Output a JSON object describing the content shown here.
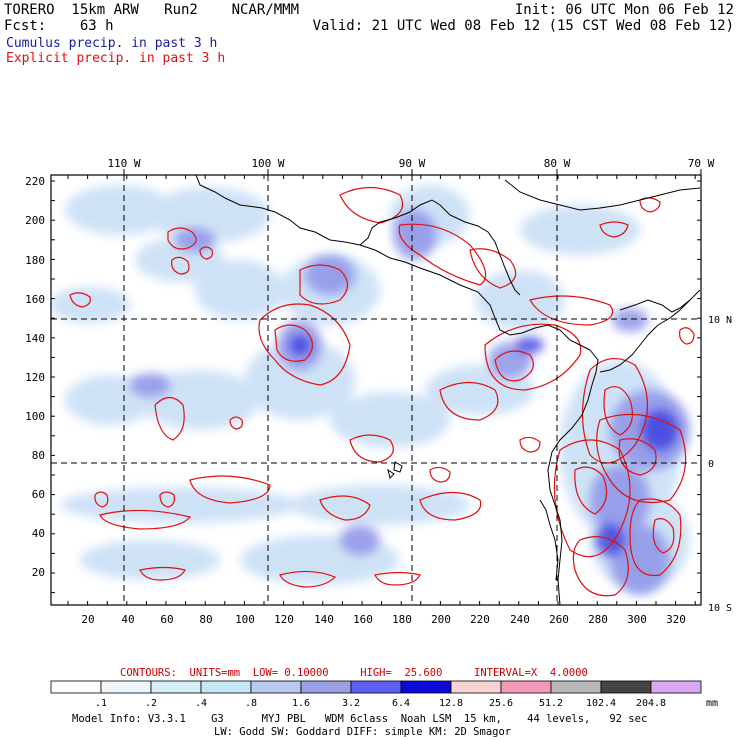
{
  "header": {
    "line1_left": "TORERO  15km ARW   Run2    NCAR/MMM",
    "line1_right": "Init: 06 UTC Mon 06 Feb 12",
    "line2_left": "Fcst:    63 h",
    "line2_right": "Valid: 21 UTC Wed 08 Feb 12 (15 CST Wed 08 Feb 12)",
    "legend_cumulus": "Cumulus precip. in past 3 h",
    "legend_explicit": "Explicit precip. in past 3 h",
    "cumulus_color": "#1a1aa0",
    "explicit_color": "#e01010"
  },
  "map": {
    "lon_labels": [
      "110 W",
      "100 W",
      "90 W",
      "80 W",
      "70 W"
    ],
    "lat_labels": [
      "10 N",
      "0",
      "10 S"
    ],
    "y_ticks": [
      "220",
      "200",
      "180",
      "160",
      "140",
      "120",
      "100",
      "80",
      "60",
      "40",
      "20"
    ],
    "x_ticks": [
      "20",
      "40",
      "60",
      "80",
      "100",
      "120",
      "140",
      "160",
      "180",
      "200",
      "220",
      "240",
      "260",
      "280",
      "300",
      "320"
    ]
  },
  "contours": {
    "text": "CONTOURS:  UNITS=mm  LOW= 0.10000     HIGH=  25.600     INTERVAL=X  4.0000",
    "color": "#cc0000"
  },
  "colorbar": {
    "labels": [
      ".1",
      ".2",
      ".4",
      ".8",
      "1.6",
      "3.2",
      "6.4",
      "12.8",
      "25.6",
      "51.2",
      "102.4",
      "204.8"
    ],
    "unit": "mm",
    "colors": [
      "#ffffff",
      "#eef6fc",
      "#d8eef9",
      "#c6e8f5",
      "#b9c9ef",
      "#9aa0e6",
      "#5d5ff2",
      "#0a0ad8",
      "#f7d3d3",
      "#f49ab8",
      "#b8b8b8",
      "#444444",
      "#d8a8f2"
    ]
  },
  "footer": {
    "line1": "Model Info: V3.3.1    G3      MYJ PBL   WDM 6class  Noah LSM  15 km,    44 levels,   92 sec",
    "line2": "LW: Godd SW: Goddard DIFF: simple KM: 2D Smagor"
  }
}
